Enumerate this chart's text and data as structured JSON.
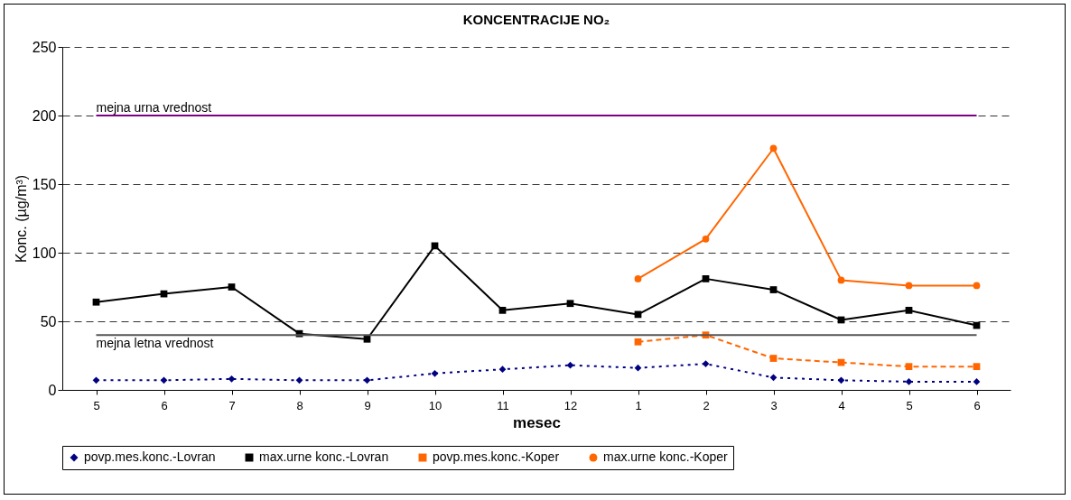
{
  "chart_data": {
    "type": "line",
    "title": "KONCENTRACIJE NO₂",
    "xlabel": "mesec",
    "ylabel": "Konc. (µg/m³)",
    "categories": [
      "5",
      "6",
      "7",
      "8",
      "9",
      "10",
      "11",
      "12",
      "1",
      "2",
      "3",
      "4",
      "5",
      "6"
    ],
    "series": [
      {
        "name": "povp.mes.konc.-Lovran",
        "color": "#000080",
        "marker": "diamond",
        "line_style": "dotted",
        "values": [
          7,
          7,
          8,
          7,
          7,
          12,
          15,
          18,
          16,
          19,
          9,
          7,
          6,
          6
        ]
      },
      {
        "name": "max.urne konc.-Lovran",
        "color": "#000000",
        "marker": "square",
        "line_style": "solid",
        "values": [
          64,
          70,
          75,
          41,
          37,
          105,
          58,
          63,
          55,
          81,
          73,
          51,
          58,
          47
        ]
      },
      {
        "name": "povp.mes.konc.-Koper",
        "color": "#ff6600",
        "marker": "square",
        "line_style": "dashed",
        "values": [
          null,
          null,
          null,
          null,
          null,
          null,
          null,
          null,
          35,
          40,
          23,
          20,
          17,
          17
        ]
      },
      {
        "name": "max.urne konc.-Koper",
        "color": "#ff6600",
        "marker": "circle",
        "line_style": "solid",
        "values": [
          null,
          null,
          null,
          null,
          null,
          null,
          null,
          null,
          81,
          110,
          176,
          80,
          76,
          76
        ]
      }
    ],
    "ref_lines": [
      {
        "axis": "y",
        "value": 200,
        "label": "mejna urna vrednost",
        "color": "#800080"
      },
      {
        "axis": "y",
        "value": 40,
        "label": "mejna letna vrednost",
        "color": "#555555"
      }
    ],
    "ylim": [
      0,
      250
    ],
    "yticks": [
      0,
      50,
      100,
      150,
      200,
      250
    ],
    "grid": "y",
    "legend": "bottom"
  }
}
